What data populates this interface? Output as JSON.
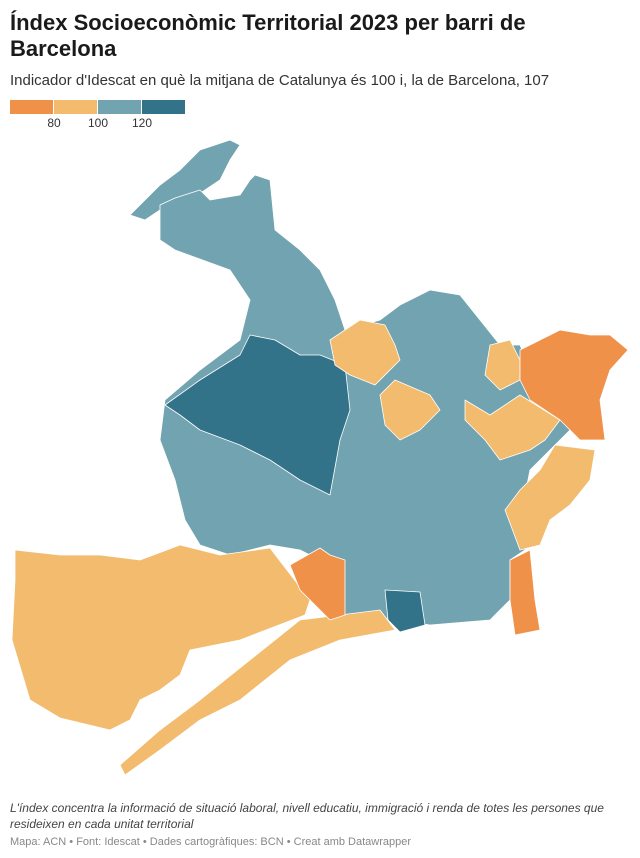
{
  "header": {
    "title": "Índex Socioeconòmic Territorial 2023 per barri de Barcelona",
    "subtitle": "Indicador d'Idescat en què la mitjana de Catalunya és 100 i, la de Barcelona, 107"
  },
  "legend": {
    "colors": [
      "#f0914a",
      "#f2bb6e",
      "#72a3b0",
      "#33738a"
    ],
    "ticks": [
      "80",
      "100",
      "120"
    ]
  },
  "footer": {
    "note": "L'índex concentra la informació de situació laboral, nivell educatiu, immigració i renda de totes les persones que resideixen en cada unitat territorial",
    "credits": "Mapa: ACN • Font: Idescat • Dades cartogràfiques: BCN  • Creat amb Datawrapper"
  }
}
